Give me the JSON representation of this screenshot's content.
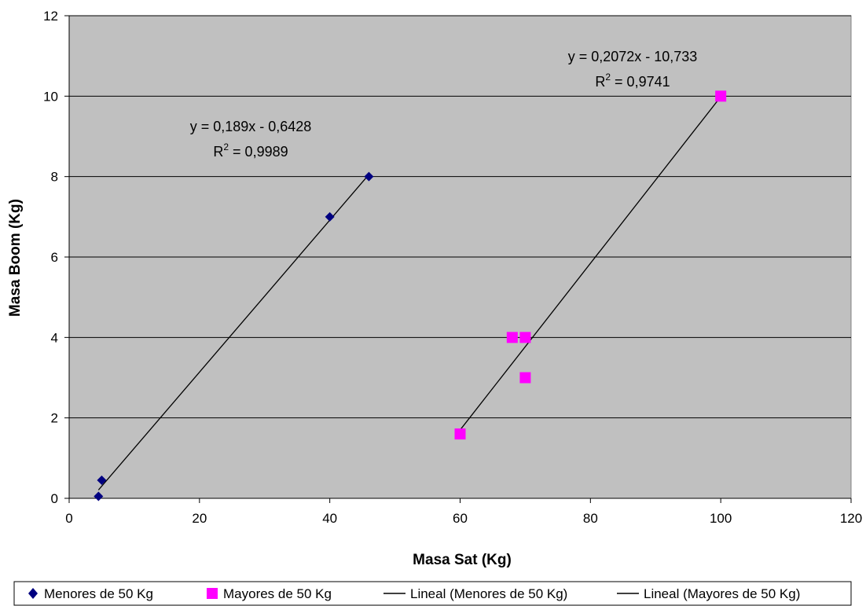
{
  "chart_data": {
    "type": "scatter",
    "xlabel": "Masa Sat (Kg)",
    "ylabel": "Masa Boom (Kg)",
    "xlim": [
      0,
      120
    ],
    "ylim": [
      0,
      12
    ],
    "xticks": [
      0,
      20,
      40,
      60,
      80,
      100,
      120
    ],
    "yticks": [
      0,
      2,
      4,
      6,
      8,
      10,
      12
    ],
    "xtick_labels": [
      "0",
      "20",
      "40",
      "60",
      "80",
      "100",
      "120"
    ],
    "ytick_labels": [
      "0",
      "2",
      "4",
      "6",
      "8",
      "10",
      "12"
    ],
    "grid": "horizontal",
    "plot_background": "#C0C0C0",
    "legend_position": "bottom",
    "series": [
      {
        "name": "Menores de 50 Kg",
        "marker": "diamond",
        "color": "#000080",
        "points": [
          [
            4.5,
            0.05
          ],
          [
            5,
            0.45
          ],
          [
            40,
            7
          ],
          [
            46,
            8
          ]
        ]
      },
      {
        "name": "Mayores de 50 Kg",
        "marker": "square",
        "color": "#FF00FF",
        "points": [
          [
            60,
            1.6
          ],
          [
            68,
            4
          ],
          [
            70,
            4
          ],
          [
            70,
            3
          ],
          [
            100,
            10
          ]
        ]
      }
    ],
    "trendlines": [
      {
        "name": "Lineal (Menores de 50 Kg)",
        "color": "#000000",
        "slope": 0.189,
        "intercept": -0.6428,
        "x_range": [
          4.5,
          46
        ],
        "equation": "y = 0,189x - 0,6428",
        "r2_label": "R",
        "r2_exp": "2",
        "r2_value": " = 0,9989"
      },
      {
        "name": "Lineal (Mayores de 50 Kg)",
        "color": "#000000",
        "slope": 0.2072,
        "intercept": -10.733,
        "x_range": [
          60,
          100
        ],
        "equation": "y = 0,2072x - 10,733",
        "r2_label": "R",
        "r2_exp": "2",
        "r2_value": " = 0,9741"
      }
    ]
  }
}
